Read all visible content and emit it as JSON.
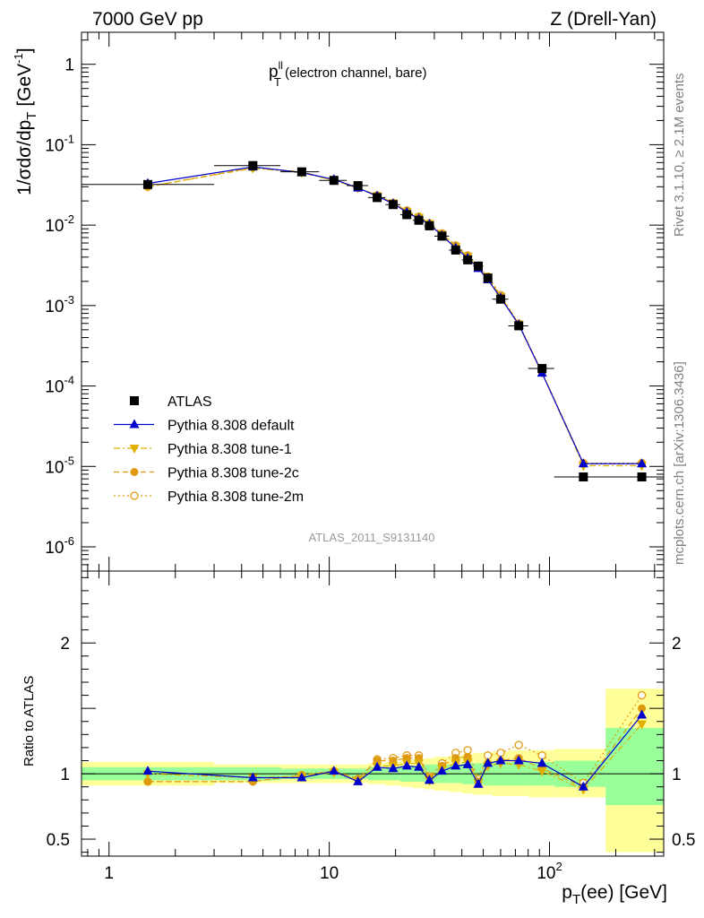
{
  "header": {
    "left": "7000 GeV pp",
    "right": "Z (Drell-Yan)"
  },
  "side_text": {
    "top": "Rivet 3.1.10, ≥ 2.1M events",
    "bottom": "mcplots.cern.ch [arXiv:1306.3436]"
  },
  "analysis_id": "ATLAS_2011_S9131140",
  "colors": {
    "atlas": "#000000",
    "default": "#0000cc",
    "tune1": "#e0b000",
    "tune2c": "#e09a10",
    "tune2m": "#e09a10",
    "band_inner": "#99ff99",
    "band_outer": "#ffff99"
  },
  "chart_data": [
    {
      "type": "line",
      "panel": "main",
      "title_main": "p",
      "title_sup": "ll",
      "title_sub": "T",
      "title_rest": " (electron channel, bare)",
      "ylabel": "1/σdσ/dp_T [GeV⁻¹]",
      "xscale": "log",
      "yscale": "log",
      "xlim": [
        0.75,
        330
      ],
      "ylim": [
        5e-07,
        2.5
      ],
      "ytick_labels": [
        {
          "base": "1",
          "exp": ""
        },
        {
          "base": "10",
          "exp": "-1"
        },
        {
          "base": "10",
          "exp": "-2"
        },
        {
          "base": "10",
          "exp": "-3"
        },
        {
          "base": "10",
          "exp": "-4"
        },
        {
          "base": "10",
          "exp": "-5"
        },
        {
          "base": "10",
          "exp": "-6"
        }
      ],
      "x": [
        1.5,
        4.5,
        7.5,
        10.5,
        13.5,
        16.5,
        19.5,
        22.5,
        25.5,
        28.5,
        32.5,
        37.5,
        42.5,
        47.5,
        52.5,
        60,
        72.5,
        92.5,
        142.5,
        262.5
      ],
      "xerr_low": [
        1.5,
        1.5,
        1.5,
        1.5,
        1.5,
        1.5,
        1.5,
        1.5,
        1.5,
        1.5,
        2.5,
        2.5,
        2.5,
        2.5,
        2.5,
        5,
        7.5,
        12.5,
        37.5,
        82.5
      ],
      "xerr_high": [
        1.5,
        1.5,
        1.5,
        1.5,
        1.5,
        1.5,
        1.5,
        1.5,
        1.5,
        1.5,
        2.5,
        2.5,
        2.5,
        2.5,
        2.5,
        5,
        7.5,
        12.5,
        37.5,
        87.5
      ],
      "series": [
        {
          "name": "ATLAS",
          "key": "atlas",
          "marker": "square",
          "line": "none",
          "values": [
            0.032,
            0.055,
            0.046,
            0.036,
            0.031,
            0.022,
            0.018,
            0.0135,
            0.0115,
            0.0098,
            0.0073,
            0.0049,
            0.0037,
            0.0031,
            0.0022,
            0.0012,
            0.00056,
            0.000165,
            7.4e-06,
            7.4e-06
          ]
        },
        {
          "name": "Pythia 8.308 default",
          "key": "default",
          "marker": "triangle-up",
          "line": "solid",
          "values": [
            0.033,
            0.053,
            0.045,
            0.037,
            0.029,
            0.023,
            0.0185,
            0.0145,
            0.012,
            0.0103,
            0.0074,
            0.0052,
            0.0039,
            0.0029,
            0.0021,
            0.00125,
            0.00058,
            0.000145,
            1.08e-05,
            1.08e-05
          ]
        },
        {
          "name": "Pythia 8.308 tune-1",
          "key": "tune1",
          "marker": "triangle-down",
          "line": "dashdot",
          "values": [
            0.03,
            0.051,
            0.045,
            0.036,
            0.029,
            0.023,
            0.0188,
            0.0148,
            0.0125,
            0.0104,
            0.0077,
            0.0054,
            0.0041,
            0.003,
            0.0022,
            0.0013,
            0.00058,
            0.000148,
            1.02e-05,
            1.02e-05
          ]
        },
        {
          "name": "Pythia 8.308 tune-2c",
          "key": "tune2c",
          "marker": "circle",
          "line": "dashed",
          "values": [
            0.03,
            0.052,
            0.046,
            0.036,
            0.029,
            0.0235,
            0.019,
            0.015,
            0.0127,
            0.0105,
            0.0078,
            0.0055,
            0.0041,
            0.003,
            0.0022,
            0.0013,
            0.00059,
            0.000148,
            1.08e-05,
            1.08e-05
          ]
        },
        {
          "name": "Pythia 8.308 tune-2m",
          "key": "tune2m",
          "marker": "circle-open",
          "line": "dotted",
          "values": [
            0.03,
            0.052,
            0.046,
            0.036,
            0.029,
            0.0235,
            0.019,
            0.0152,
            0.0128,
            0.0106,
            0.0079,
            0.0056,
            0.0042,
            0.003,
            0.0023,
            0.00135,
            0.0006,
            0.000148,
            1.1e-05,
            1.1e-05
          ]
        }
      ],
      "legend_position": "lower-left"
    },
    {
      "type": "line",
      "panel": "ratio",
      "ylabel": "Ratio to ATLAS",
      "xlabel_main": "p",
      "xlabel_sub": "T",
      "xlabel_rest": "(ee) [GeV]",
      "xscale": "log",
      "xlim": [
        0.75,
        330
      ],
      "ylim": [
        0.37,
        2.55
      ],
      "yticks": [
        {
          "value": 0.5,
          "label": "0.5"
        },
        {
          "value": 1,
          "label": "1"
        },
        {
          "value": 2,
          "label": "2"
        }
      ],
      "xtick_labels": [
        {
          "value": 1,
          "base": "1",
          "exp": ""
        },
        {
          "value": 10,
          "base": "10",
          "exp": ""
        },
        {
          "value": 100,
          "base": "10",
          "exp": "2"
        }
      ],
      "bands": {
        "edges": [
          0.75,
          3,
          6,
          9,
          12,
          15,
          18,
          21,
          24,
          27,
          30,
          35,
          40,
          45,
          50,
          55,
          65,
          80,
          105,
          180,
          350
        ],
        "inner_low": [
          0.95,
          0.95,
          0.96,
          0.96,
          0.96,
          0.95,
          0.95,
          0.94,
          0.94,
          0.93,
          0.93,
          0.93,
          0.92,
          0.92,
          0.91,
          0.91,
          0.91,
          0.91,
          0.9,
          0.76
        ],
        "inner_high": [
          1.05,
          1.05,
          1.04,
          1.04,
          1.04,
          1.05,
          1.05,
          1.06,
          1.06,
          1.07,
          1.07,
          1.07,
          1.08,
          1.08,
          1.09,
          1.09,
          1.09,
          1.09,
          1.1,
          1.35
        ],
        "outer_low": [
          0.91,
          0.93,
          0.93,
          0.93,
          0.93,
          0.92,
          0.91,
          0.9,
          0.89,
          0.88,
          0.87,
          0.86,
          0.85,
          0.84,
          0.84,
          0.83,
          0.83,
          0.82,
          0.82,
          0.4
        ],
        "outer_high": [
          1.09,
          1.07,
          1.07,
          1.07,
          1.07,
          1.08,
          1.09,
          1.1,
          1.11,
          1.12,
          1.13,
          1.14,
          1.15,
          1.16,
          1.16,
          1.17,
          1.18,
          1.18,
          1.19,
          1.65
        ]
      },
      "series": [
        {
          "name": "Pythia 8.308 default",
          "key": "default",
          "marker": "triangle-up",
          "line": "solid",
          "values": [
            1.02,
            0.97,
            0.97,
            1.02,
            0.94,
            1.05,
            1.04,
            1.06,
            1.05,
            0.95,
            1.02,
            1.06,
            1.07,
            0.92,
            1.08,
            1.1,
            1.1,
            1.08,
            0.9,
            1.45
          ]
        },
        {
          "name": "Pythia 8.308 tune-1",
          "key": "tune1",
          "marker": "triangle-down",
          "line": "dashdot",
          "values": [
            1.0,
            0.97,
            0.98,
            1.01,
            0.95,
            1.06,
            1.06,
            1.08,
            1.08,
            0.95,
            1.04,
            1.08,
            1.09,
            0.93,
            1.06,
            1.08,
            1.07,
            1.02,
            0.88,
            1.38
          ]
        },
        {
          "name": "Pythia 8.308 tune-2c",
          "key": "tune2c",
          "marker": "circle",
          "line": "dashed",
          "values": [
            0.94,
            0.94,
            0.99,
            1.02,
            0.96,
            1.1,
            1.1,
            1.12,
            1.12,
            0.97,
            1.06,
            1.12,
            1.13,
            0.94,
            1.08,
            1.1,
            1.12,
            1.04,
            0.9,
            1.5
          ]
        },
        {
          "name": "Pythia 8.308 tune-2m",
          "key": "tune2m",
          "marker": "circle-open",
          "line": "dotted",
          "values": [
            0.94,
            0.94,
            0.99,
            1.02,
            0.96,
            1.11,
            1.12,
            1.14,
            1.14,
            0.98,
            1.08,
            1.16,
            1.18,
            0.96,
            1.14,
            1.16,
            1.22,
            1.14,
            0.93,
            1.6
          ]
        }
      ]
    }
  ]
}
